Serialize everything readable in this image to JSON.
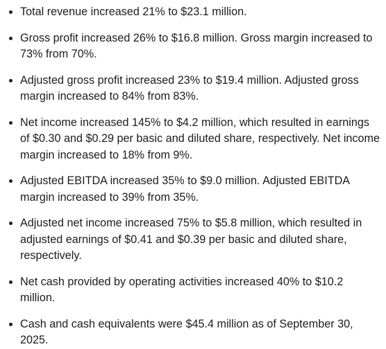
{
  "highlights": {
    "items": [
      "Total revenue increased 21% to $23.1 million.",
      "Gross profit increased 26% to $16.8 million. Gross margin increased to 73% from 70%.",
      "Adjusted gross profit increased 23% to $19.4 million. Adjusted gross margin increased to 84% from 83%.",
      "Net income increased 145% to $4.2 million, which resulted in earnings of $0.30 and $0.29 per basic and diluted share, respectively. Net income margin increased to 18% from 9%.",
      "Adjusted EBITDA increased 35% to $9.0 million. Adjusted EBITDA margin increased to 39% from 35%.",
      "Adjusted net income increased 75% to $5.8 million, which resulted in adjusted earnings of $0.41 and $0.39 per basic and diluted share, respectively.",
      "Net cash provided by operating activities increased 40% to $10.2 million.",
      "Cash and cash equivalents were $45.4 million as of September 30, 2025."
    ]
  }
}
